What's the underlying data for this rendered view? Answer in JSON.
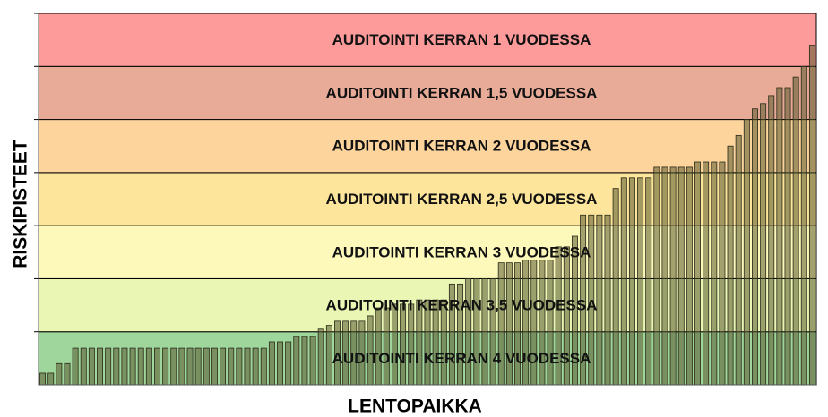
{
  "chart_data": {
    "type": "bar",
    "y_label": "RISKIPISTEET",
    "x_label": "LENTOPAIKKA",
    "ylim": [
      0,
      7
    ],
    "color": "#5a5a30",
    "bands": [
      {
        "label": "AUDITOINTI KERRAN 4 VUODESSA",
        "from": 0,
        "to": 1,
        "color": "#9fd69b"
      },
      {
        "label": "AUDITOINTI KERRAN 3,5 VUODESSA",
        "from": 1,
        "to": 2,
        "color": "#e9f6b4"
      },
      {
        "label": "AUDITOINTI KERRAN 3 VUODESSA",
        "from": 2,
        "to": 3,
        "color": "#fdf9bb"
      },
      {
        "label": "AUDITOINTI KERRAN 2,5 VUODESSA",
        "from": 3,
        "to": 4,
        "color": "#fde59c"
      },
      {
        "label": "AUDITOINTI KERRAN 2 VUODESSA",
        "from": 4,
        "to": 5,
        "color": "#fcd49c"
      },
      {
        "label": "AUDITOINTI KERRAN 1,5 VUODESSA",
        "from": 5,
        "to": 6,
        "color": "#e8ab98"
      },
      {
        "label": "AUDITOINTI KERRAN 1 VUODESSA",
        "from": 6,
        "to": 7,
        "color": "#fd9a9a"
      }
    ],
    "values": [
      0.22,
      0.22,
      0.4,
      0.4,
      0.69,
      0.69,
      0.69,
      0.69,
      0.69,
      0.69,
      0.69,
      0.69,
      0.69,
      0.69,
      0.69,
      0.69,
      0.69,
      0.69,
      0.69,
      0.69,
      0.69,
      0.69,
      0.69,
      0.69,
      0.69,
      0.69,
      0.69,
      0.69,
      0.81,
      0.81,
      0.81,
      0.91,
      0.91,
      0.91,
      1.05,
      1.12,
      1.2,
      1.2,
      1.2,
      1.2,
      1.3,
      1.45,
      1.45,
      1.52,
      1.52,
      1.52,
      1.6,
      1.6,
      1.6,
      1.6,
      1.9,
      1.9,
      2.0,
      2.0,
      2.0,
      2.0,
      2.3,
      2.3,
      2.3,
      2.35,
      2.35,
      2.35,
      2.35,
      2.6,
      2.6,
      2.8,
      3.2,
      3.2,
      3.2,
      3.2,
      3.7,
      3.9,
      3.9,
      3.9,
      3.9,
      4.1,
      4.1,
      4.1,
      4.1,
      4.1,
      4.2,
      4.2,
      4.2,
      4.2,
      4.5,
      4.7,
      5.0,
      5.2,
      5.3,
      5.45,
      5.6,
      5.6,
      5.8,
      6.0,
      6.4
    ]
  }
}
